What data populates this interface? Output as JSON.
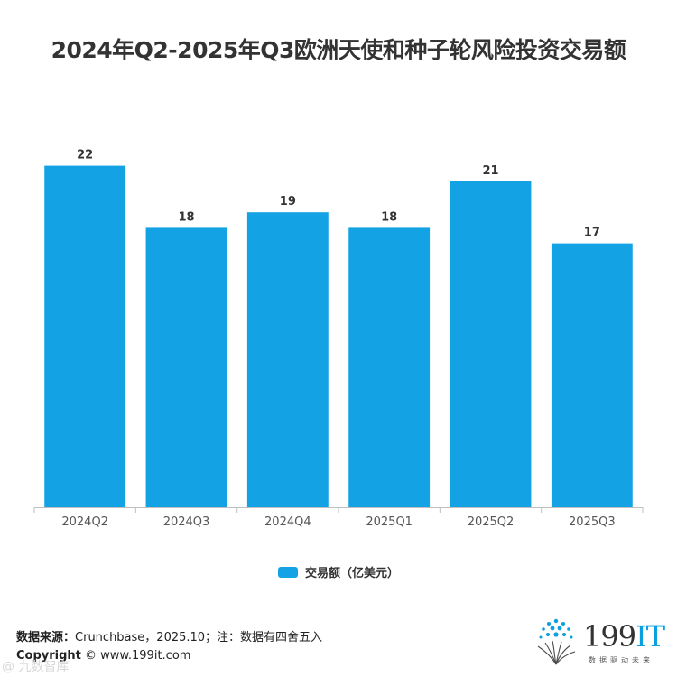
{
  "chart_data": {
    "type": "bar",
    "title": "2024年Q2-2025年Q3欧洲天使和种子轮风险投资交易额",
    "categories": [
      "2024Q2",
      "2024Q3",
      "2024Q4",
      "2025Q1",
      "2025Q2",
      "2025Q3"
    ],
    "series": [
      {
        "name": "交易额（亿美元）",
        "values": [
          22,
          18,
          19,
          18,
          21,
          17
        ]
      }
    ],
    "data_labels": [
      "22",
      "18",
      "19",
      "18",
      "21",
      "17"
    ],
    "xlabel": "",
    "ylabel": "",
    "ylim": [
      0,
      22.5
    ],
    "grid": false,
    "legend_position": "bottom",
    "bar_color": "#13a2e3"
  },
  "footer": {
    "source_label": "数据来源：",
    "source_text": "Crunchbase，2025.10；注：数据有四舍五入",
    "copyright_label": "Copyright",
    "copyright_text": "© www.199it.com"
  },
  "logo": {
    "main": "199",
    "accent": "IT",
    "tagline": "数据驱动未来"
  },
  "watermark": "@ 九数智库"
}
